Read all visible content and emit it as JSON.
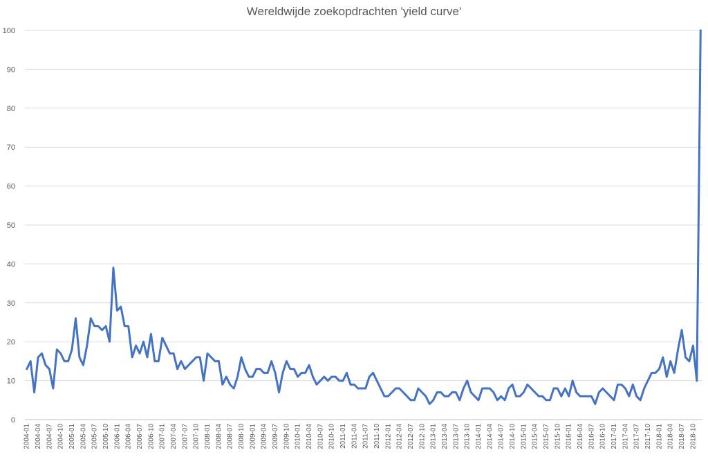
{
  "chart_data": {
    "type": "line",
    "title": "Wereldwijde zoekopdrachten 'yield curve'",
    "xlabel": "",
    "ylabel": "",
    "ylim": [
      0,
      100
    ],
    "yticks": [
      0,
      10,
      20,
      30,
      40,
      50,
      60,
      70,
      80,
      90,
      100
    ],
    "grid": true,
    "legend": "none",
    "colors": {
      "series": "#4472C4",
      "grid": "#d9d9d9",
      "text": "#595959"
    },
    "x": [
      "2004-01",
      "2004-02",
      "2004-03",
      "2004-04",
      "2004-05",
      "2004-06",
      "2004-07",
      "2004-08",
      "2004-09",
      "2004-10",
      "2004-11",
      "2004-12",
      "2005-01",
      "2005-02",
      "2005-03",
      "2005-04",
      "2005-05",
      "2005-06",
      "2005-07",
      "2005-08",
      "2005-09",
      "2005-10",
      "2005-11",
      "2005-12",
      "2006-01",
      "2006-02",
      "2006-03",
      "2006-04",
      "2006-05",
      "2006-06",
      "2006-07",
      "2006-08",
      "2006-09",
      "2006-10",
      "2006-11",
      "2006-12",
      "2007-01",
      "2007-02",
      "2007-03",
      "2007-04",
      "2007-05",
      "2007-06",
      "2007-07",
      "2007-08",
      "2007-09",
      "2007-10",
      "2007-11",
      "2007-12",
      "2008-01",
      "2008-02",
      "2008-03",
      "2008-04",
      "2008-05",
      "2008-06",
      "2008-07",
      "2008-08",
      "2008-09",
      "2008-10",
      "2008-11",
      "2008-12",
      "2009-01",
      "2009-02",
      "2009-03",
      "2009-04",
      "2009-05",
      "2009-06",
      "2009-07",
      "2009-08",
      "2009-09",
      "2009-10",
      "2009-11",
      "2009-12",
      "2010-01",
      "2010-02",
      "2010-03",
      "2010-04",
      "2010-05",
      "2010-06",
      "2010-07",
      "2010-08",
      "2010-09",
      "2010-10",
      "2010-11",
      "2010-12",
      "2011-01",
      "2011-02",
      "2011-03",
      "2011-04",
      "2011-05",
      "2011-06",
      "2011-07",
      "2011-08",
      "2011-09",
      "2011-10",
      "2011-11",
      "2011-12",
      "2012-01",
      "2012-02",
      "2012-03",
      "2012-04",
      "2012-05",
      "2012-06",
      "2012-07",
      "2012-08",
      "2012-09",
      "2012-10",
      "2012-11",
      "2012-12",
      "2013-01",
      "2013-02",
      "2013-03",
      "2013-04",
      "2013-05",
      "2013-06",
      "2013-07",
      "2013-08",
      "2013-09",
      "2013-10",
      "2013-11",
      "2013-12",
      "2014-01",
      "2014-02",
      "2014-03",
      "2014-04",
      "2014-05",
      "2014-06",
      "2014-07",
      "2014-08",
      "2014-09",
      "2014-10",
      "2014-11",
      "2014-12",
      "2015-01",
      "2015-02",
      "2015-03",
      "2015-04",
      "2015-05",
      "2015-06",
      "2015-07",
      "2015-08",
      "2015-09",
      "2015-10",
      "2015-11",
      "2015-12",
      "2016-01",
      "2016-02",
      "2016-03",
      "2016-04",
      "2016-05",
      "2016-06",
      "2016-07",
      "2016-08",
      "2016-09",
      "2016-10",
      "2016-11",
      "2016-12",
      "2017-01",
      "2017-02",
      "2017-03",
      "2017-04",
      "2017-05",
      "2017-06",
      "2017-07",
      "2017-08",
      "2017-09",
      "2017-10",
      "2017-11",
      "2017-12",
      "2018-01",
      "2018-02",
      "2018-03",
      "2018-04",
      "2018-05",
      "2018-06",
      "2018-07",
      "2018-08",
      "2018-09",
      "2018-10",
      "2018-11",
      "2018-12"
    ],
    "xtick_labels": [
      "2004-01",
      "2004-04",
      "2004-07",
      "2004-10",
      "2005-01",
      "2005-04",
      "2005-07",
      "2005-10",
      "2006-01",
      "2006-04",
      "2006-07",
      "2006-10",
      "2007-01",
      "2007-04",
      "2007-07",
      "2007-10",
      "2008-01",
      "2008-04",
      "2008-07",
      "2008-10",
      "2009-01",
      "2009-04",
      "2009-07",
      "2009-10",
      "2010-01",
      "2010-04",
      "2010-07",
      "2010-10",
      "2011-01",
      "2011-04",
      "2011-07",
      "2011-10",
      "2012-01",
      "2012-04",
      "2012-07",
      "2012-10",
      "2013-01",
      "2013-04",
      "2013-07",
      "2013-10",
      "2014-01",
      "2014-04",
      "2014-07",
      "2014-10",
      "2015-01",
      "2015-04",
      "2015-07",
      "2015-10",
      "2016-01",
      "2016-04",
      "2016-07",
      "2016-10",
      "2017-01",
      "2017-04",
      "2017-07",
      "2017-10",
      "2018-01",
      "2018-04",
      "2018-07",
      "2018-10"
    ],
    "series": [
      {
        "values": [
          13,
          15,
          7,
          16,
          17,
          14,
          13,
          8,
          18,
          17,
          15,
          15,
          18,
          26,
          16,
          14,
          19,
          26,
          24,
          24,
          23,
          24,
          20,
          39,
          28,
          29,
          24,
          24,
          16,
          19,
          17,
          20,
          16,
          22,
          15,
          15,
          21,
          19,
          17,
          17,
          13,
          15,
          13,
          14,
          15,
          16,
          16,
          10,
          17,
          16,
          15,
          15,
          9,
          11,
          9,
          8,
          11,
          16,
          13,
          11,
          11,
          13,
          13,
          12,
          12,
          15,
          12,
          7,
          12,
          15,
          13,
          13,
          11,
          12,
          12,
          14,
          11,
          9,
          10,
          11,
          10,
          11,
          11,
          10,
          10,
          12,
          9,
          9,
          8,
          8,
          8,
          11,
          12,
          10,
          8,
          6,
          6,
          7,
          8,
          8,
          7,
          6,
          5,
          5,
          8,
          7,
          6,
          4,
          5,
          7,
          7,
          6,
          6,
          7,
          7,
          5,
          8,
          10,
          7,
          6,
          5,
          8,
          8,
          8,
          7,
          5,
          6,
          5,
          8,
          9,
          6,
          6,
          7,
          9,
          8,
          7,
          6,
          6,
          5,
          5,
          8,
          8,
          6,
          8,
          6,
          10,
          7,
          6,
          6,
          6,
          6,
          4,
          7,
          8,
          7,
          6,
          5,
          9,
          9,
          8,
          6,
          9,
          6,
          5,
          8,
          10,
          12,
          12,
          13,
          16,
          11,
          15,
          12,
          18,
          23,
          16,
          15,
          19,
          10,
          100
        ]
      }
    ]
  }
}
